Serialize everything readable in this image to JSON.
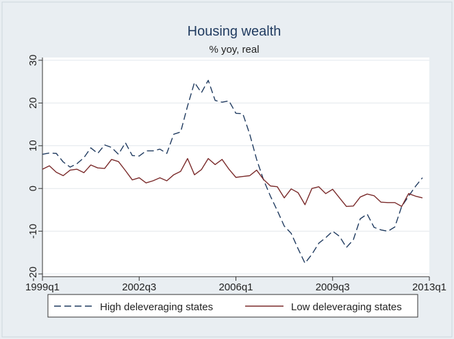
{
  "chart_data": {
    "type": "line",
    "title": "Housing wealth",
    "subtitle": "% yoy, real",
    "xlabel": "",
    "ylabel": "",
    "x_ticks": [
      "1999q1",
      "2002q3",
      "2006q1",
      "2009q3",
      "2013q1"
    ],
    "x_tick_index": [
      0,
      14,
      28,
      42,
      56
    ],
    "x_range_index": [
      0,
      56
    ],
    "ylim": [
      -20,
      30
    ],
    "y_ticks": [
      -20,
      -10,
      0,
      10,
      20,
      30
    ],
    "y_tick_labels": [
      "-20",
      "-10",
      "0",
      "10",
      "20",
      "30"
    ],
    "grid": true,
    "legend_placement": "bottom",
    "series": [
      {
        "name": "High deleveraging states",
        "color": "#1f3a5f",
        "dash": "dashed",
        "values": [
          8.0,
          8.3,
          8.2,
          6.2,
          5.0,
          5.8,
          7.2,
          9.5,
          8.2,
          10.2,
          9.6,
          8.0,
          10.7,
          7.7,
          7.6,
          8.8,
          8.8,
          9.2,
          8.2,
          12.7,
          13.2,
          19.3,
          24.8,
          22.4,
          25.3,
          20.6,
          20.2,
          20.5,
          17.6,
          17.5,
          12.7,
          6.8,
          2.0,
          -1.8,
          -5.2,
          -8.8,
          -10.5,
          -14.1,
          -17.5,
          -15.4,
          -12.8,
          -11.5,
          -10.0,
          -11.2,
          -13.8,
          -12.0,
          -7.1,
          -6.0,
          -9.1,
          -9.7,
          -10.0,
          -9.0,
          -4.2,
          -1.8,
          0.5,
          2.5
        ]
      },
      {
        "name": "Low deleveraging states",
        "color": "#7a2a2a",
        "dash": "solid",
        "values": [
          4.5,
          5.3,
          3.8,
          3.0,
          4.3,
          4.5,
          3.7,
          5.5,
          4.8,
          4.7,
          6.8,
          6.3,
          4.2,
          2.0,
          2.5,
          1.3,
          1.8,
          2.5,
          1.8,
          3.2,
          4.0,
          7.0,
          3.2,
          4.4,
          7.0,
          5.6,
          6.8,
          4.5,
          2.6,
          2.8,
          3.0,
          4.3,
          2.1,
          0.6,
          0.4,
          -2.2,
          -0.1,
          -1.0,
          -3.8,
          0.0,
          0.4,
          -1.2,
          -0.2,
          -2.2,
          -4.2,
          -4.1,
          -2.0,
          -1.3,
          -1.7,
          -3.2,
          -3.3,
          -3.3,
          -4.2,
          -1.2,
          -1.8,
          -2.2
        ]
      }
    ]
  }
}
